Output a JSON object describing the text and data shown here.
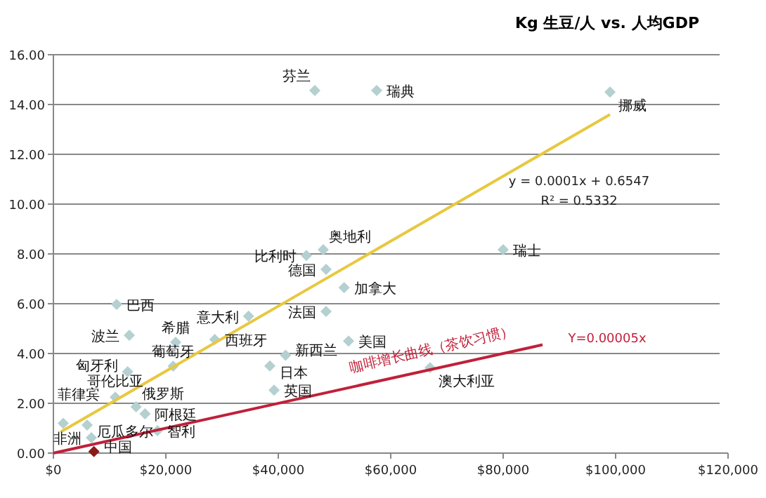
{
  "chart_data": {
    "type": "scatter",
    "title": "Kg 生豆/人 vs. 人均GDP",
    "xlim": [
      0,
      120000
    ],
    "ylim": [
      0,
      16
    ],
    "xticks": [
      {
        "value": 0,
        "label": "$0"
      },
      {
        "value": 20000,
        "label": "$20,000"
      },
      {
        "value": 40000,
        "label": "$40,000"
      },
      {
        "value": 60000,
        "label": "$60,000"
      },
      {
        "value": 80000,
        "label": "$80,000"
      },
      {
        "value": 100000,
        "label": "$100,000"
      },
      {
        "value": 120000,
        "label": "$120,000"
      }
    ],
    "yticks": [
      {
        "value": 0,
        "label": "0.00"
      },
      {
        "value": 2,
        "label": "2.00"
      },
      {
        "value": 4,
        "label": "4.00"
      },
      {
        "value": 6,
        "label": "6.00"
      },
      {
        "value": 8,
        "label": "8.00"
      },
      {
        "value": 10,
        "label": "10.00"
      },
      {
        "value": 12,
        "label": "12.00"
      },
      {
        "value": 14,
        "label": "14.00"
      },
      {
        "value": 16,
        "label": "16.00"
      }
    ],
    "grid": "y",
    "series": [
      {
        "type": "scatter",
        "marker": "diamond",
        "colors": [
          "#b4d0d0",
          "#b4d0d0",
          "#b4d0d0",
          "#b4d0d0",
          "#b4d0d0",
          "#b4d0d0",
          "#b4d0d0",
          "#b4d0d0",
          "#b4d0d0",
          "#b4d0d0",
          "#b4d0d0",
          "#b4d0d0",
          "#b4d0d0",
          "#b4d0d0",
          "#b4d0d0",
          "#b4d0d0",
          "#b4d0d0",
          "#b4d0d0",
          "#b4d0d0",
          "#b4d0d0",
          "#b4d0d0",
          "#b4d0d0",
          "#b4d0d0",
          "#b4d0d0",
          "#b4d0d0",
          "#b4d0d0",
          "#b4d0d0",
          "#b4d0d0",
          "#8b1a1a"
        ],
        "x": [
          46500,
          57500,
          99000,
          80000,
          45000,
          48000,
          48500,
          51700,
          48500,
          11250,
          13500,
          21750,
          34700,
          28700,
          13200,
          21300,
          38500,
          41300,
          52500,
          39250,
          67000,
          11000,
          14700,
          1750,
          6000,
          16300,
          18500,
          6750,
          7200
        ],
        "values": [
          14.56,
          14.56,
          14.5,
          8.17,
          7.94,
          8.17,
          7.38,
          6.65,
          5.69,
          5.97,
          4.73,
          4.45,
          5.5,
          4.56,
          3.27,
          3.49,
          3.5,
          3.93,
          4.5,
          2.53,
          3.43,
          2.25,
          1.86,
          1.2,
          1.13,
          1.58,
          0.9,
          0.62,
          0.06
        ]
      },
      {
        "type": "line",
        "color": "#e8c840",
        "x": [
          1300,
          99000
        ],
        "values": [
          0.85,
          13.6
        ]
      },
      {
        "type": "line",
        "color": "#c0203a",
        "x": [
          0,
          87000
        ],
        "values": [
          0,
          4.35
        ]
      }
    ],
    "annotations": [
      {
        "text": "芬兰",
        "x": 46500,
        "y": 14.56
      },
      {
        "text": "瑞典",
        "x": 57500,
        "y": 14.56
      },
      {
        "text": "挪威",
        "x": 99000,
        "y": 14.5
      },
      {
        "text": "瑞士",
        "x": 80000,
        "y": 8.17
      },
      {
        "text": "比利时",
        "x": 45000,
        "y": 7.94
      },
      {
        "text": "奥地利",
        "x": 48000,
        "y": 8.17
      },
      {
        "text": "德国",
        "x": 48500,
        "y": 7.38
      },
      {
        "text": "加拿大",
        "x": 51700,
        "y": 6.65
      },
      {
        "text": "法国",
        "x": 48500,
        "y": 5.69
      },
      {
        "text": "巴西",
        "x": 11250,
        "y": 5.97
      },
      {
        "text": "波兰",
        "x": 13500,
        "y": 4.73
      },
      {
        "text": "希腊",
        "x": 21750,
        "y": 4.45
      },
      {
        "text": "意大利",
        "x": 34700,
        "y": 5.5
      },
      {
        "text": "西班牙",
        "x": 28700,
        "y": 4.56
      },
      {
        "text": "匈牙利",
        "x": 13200,
        "y": 3.27
      },
      {
        "text": "葡萄牙",
        "x": 21300,
        "y": 3.49
      },
      {
        "text": "日本",
        "x": 38500,
        "y": 3.5
      },
      {
        "text": "新西兰",
        "x": 41300,
        "y": 3.93
      },
      {
        "text": "美国",
        "x": 52500,
        "y": 4.5
      },
      {
        "text": "英国",
        "x": 39250,
        "y": 2.53
      },
      {
        "text": "澳大利亚",
        "x": 67000,
        "y": 3.43
      },
      {
        "text": "哥伦比亚",
        "x": 11000,
        "y": 2.25
      },
      {
        "text": "俄罗斯",
        "x": 14700,
        "y": 1.86
      },
      {
        "text": "菲律宾",
        "x": 1750,
        "y": 1.2
      },
      {
        "text": "厄瓜多尔",
        "x": 6000,
        "y": 1.13
      },
      {
        "text": "阿根廷",
        "x": 16300,
        "y": 1.58
      },
      {
        "text": "智利",
        "x": 18500,
        "y": 0.9
      },
      {
        "text": "非洲",
        "x": 6750,
        "y": 0.62
      },
      {
        "text": "中国",
        "x": 7200,
        "y": 0.06
      },
      "y = 0.0001x + 0.6547",
      "R² = 0.5332",
      "咖啡增长曲线（茶饮习惯）",
      "Y=0.00005x"
    ]
  }
}
